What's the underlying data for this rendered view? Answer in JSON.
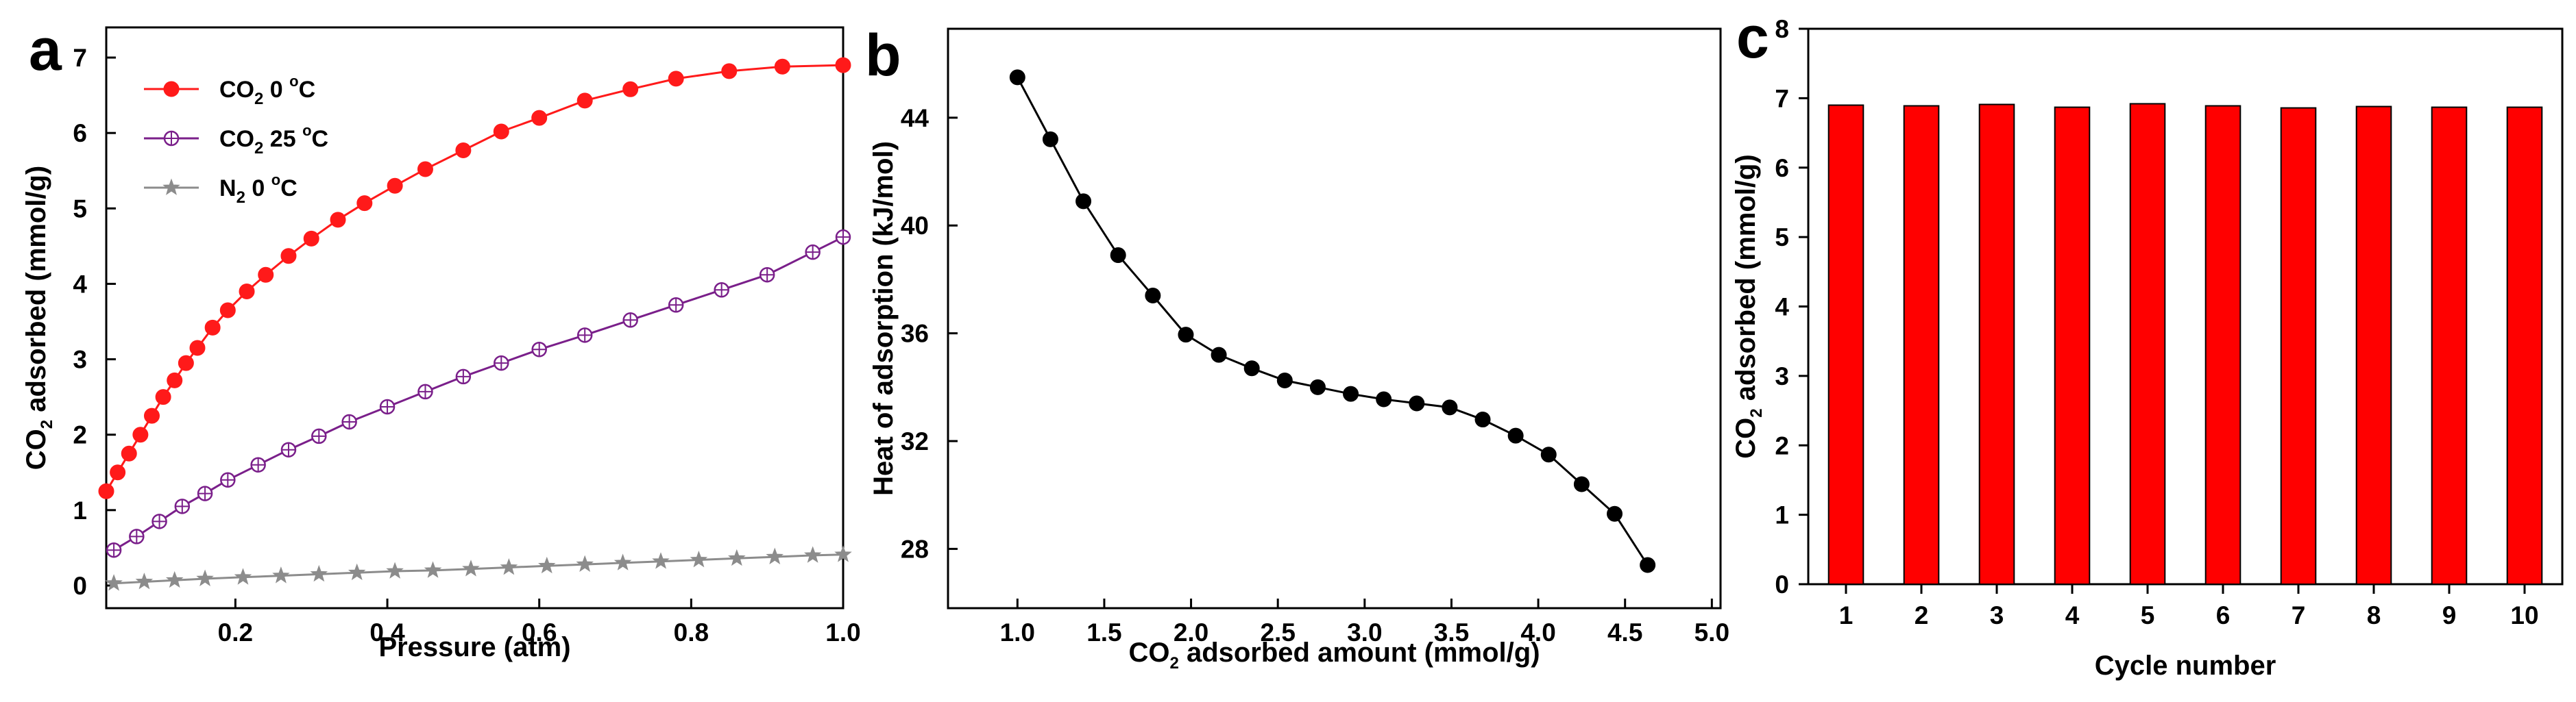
{
  "panels": {
    "a": "a",
    "b": "b",
    "c": "c"
  },
  "chart_data": [
    {
      "id": "a",
      "type": "scatter",
      "title": "",
      "xlabel": "Pressure (atm)",
      "ylabel": {
        "pre": "CO",
        "sub": "2",
        "post": " adsorbed (mmol/g)"
      },
      "xlim": [
        0.03,
        1.0
      ],
      "ylim": [
        -0.3,
        7.4
      ],
      "xticks": [
        0.2,
        0.4,
        0.6,
        0.8,
        1.0
      ],
      "xticklabels": [
        "0.2",
        "0.4",
        "0.6",
        "0.8",
        "1.0"
      ],
      "yticks": [
        0,
        1,
        2,
        3,
        4,
        5,
        6,
        7
      ],
      "yticklabels": [
        "0",
        "1",
        "2",
        "3",
        "4",
        "5",
        "6",
        "7"
      ],
      "legend_position": "top-left",
      "series": [
        {
          "name": {
            "pre": "CO",
            "sub": "2",
            "post": " 0 ",
            "sup": "o",
            "tail": "C"
          },
          "color": "#ff1a1a",
          "marker": "filled-circle",
          "x": [
            0.03,
            0.045,
            0.06,
            0.075,
            0.09,
            0.105,
            0.12,
            0.135,
            0.15,
            0.17,
            0.19,
            0.215,
            0.24,
            0.27,
            0.3,
            0.335,
            0.37,
            0.41,
            0.45,
            0.5,
            0.55,
            0.6,
            0.66,
            0.72,
            0.78,
            0.85,
            0.92,
            1.0
          ],
          "y": [
            1.25,
            1.5,
            1.75,
            2.0,
            2.25,
            2.5,
            2.72,
            2.95,
            3.15,
            3.42,
            3.65,
            3.9,
            4.12,
            4.37,
            4.6,
            4.85,
            5.07,
            5.3,
            5.52,
            5.77,
            6.02,
            6.2,
            6.43,
            6.58,
            6.72,
            6.82,
            6.88,
            6.9
          ]
        },
        {
          "name": {
            "pre": "CO",
            "sub": "2",
            "post": " 25 ",
            "sup": "o",
            "tail": "C"
          },
          "color": "#7a1f8a",
          "marker": "crossed-circle",
          "x": [
            0.04,
            0.07,
            0.1,
            0.13,
            0.16,
            0.19,
            0.23,
            0.27,
            0.31,
            0.35,
            0.4,
            0.45,
            0.5,
            0.55,
            0.6,
            0.66,
            0.72,
            0.78,
            0.84,
            0.9,
            0.96,
            1.0
          ],
          "y": [
            0.47,
            0.65,
            0.85,
            1.05,
            1.22,
            1.4,
            1.6,
            1.8,
            1.98,
            2.17,
            2.37,
            2.57,
            2.77,
            2.95,
            3.13,
            3.32,
            3.52,
            3.72,
            3.92,
            4.12,
            4.42,
            4.62
          ]
        },
        {
          "name": {
            "pre": "N",
            "sub": "2",
            "post": " 0 ",
            "sup": "o",
            "tail": "C"
          },
          "color": "#8c8c8c",
          "marker": "star",
          "x": [
            0.04,
            0.08,
            0.12,
            0.16,
            0.21,
            0.26,
            0.31,
            0.36,
            0.41,
            0.46,
            0.51,
            0.56,
            0.61,
            0.66,
            0.71,
            0.76,
            0.81,
            0.86,
            0.91,
            0.96,
            1.0
          ],
          "y": [
            0.03,
            0.05,
            0.07,
            0.09,
            0.11,
            0.13,
            0.15,
            0.17,
            0.19,
            0.2,
            0.22,
            0.24,
            0.26,
            0.28,
            0.3,
            0.32,
            0.34,
            0.36,
            0.38,
            0.4,
            0.41
          ]
        }
      ]
    },
    {
      "id": "b",
      "type": "line",
      "title": "",
      "xlabel": {
        "pre": "CO",
        "sub": "2",
        "post": " adsorbed amount (mmol/g)"
      },
      "ylabel": "Heat of adsorption (kJ/mol)",
      "xlim": [
        0.6,
        5.05
      ],
      "ylim": [
        25.8,
        47.3
      ],
      "xticks": [
        1.0,
        1.5,
        2.0,
        2.5,
        3.0,
        3.5,
        4.0,
        4.5,
        5.0
      ],
      "xticklabels": [
        "1.0",
        "1.5",
        "2.0",
        "2.5",
        "3.0",
        "3.5",
        "4.0",
        "4.5",
        "5.0"
      ],
      "yticks": [
        28,
        32,
        36,
        40,
        44
      ],
      "yticklabels": [
        "28",
        "32",
        "36",
        "40",
        "44"
      ],
      "series": [
        {
          "name": "Heat of adsorption",
          "color": "#000000",
          "marker": "filled-circle",
          "x": [
            1.0,
            1.19,
            1.38,
            1.58,
            1.78,
            1.97,
            2.16,
            2.35,
            2.54,
            2.73,
            2.92,
            3.11,
            3.3,
            3.49,
            3.68,
            3.87,
            4.06,
            4.25,
            4.44,
            4.63
          ],
          "y": [
            45.5,
            43.2,
            40.9,
            38.9,
            37.4,
            35.95,
            35.2,
            34.7,
            34.25,
            34.0,
            33.75,
            33.55,
            33.4,
            33.25,
            32.8,
            32.2,
            31.5,
            30.4,
            29.3,
            27.4
          ]
        }
      ]
    },
    {
      "id": "c",
      "type": "bar",
      "title": "",
      "xlabel": "Cycle number",
      "ylabel": {
        "pre": "CO",
        "sub": "2",
        "post": " adsorbed (mmol/g)"
      },
      "ylim": [
        0,
        8
      ],
      "yticks": [
        0,
        1,
        2,
        3,
        4,
        5,
        6,
        7,
        8
      ],
      "yticklabels": [
        "0",
        "1",
        "2",
        "3",
        "4",
        "5",
        "6",
        "7",
        "8"
      ],
      "categories": [
        "1",
        "2",
        "3",
        "4",
        "5",
        "6",
        "7",
        "8",
        "9",
        "10"
      ],
      "values": [
        6.9,
        6.89,
        6.91,
        6.87,
        6.92,
        6.89,
        6.86,
        6.88,
        6.87,
        6.87
      ],
      "color": "#ff0000"
    }
  ]
}
